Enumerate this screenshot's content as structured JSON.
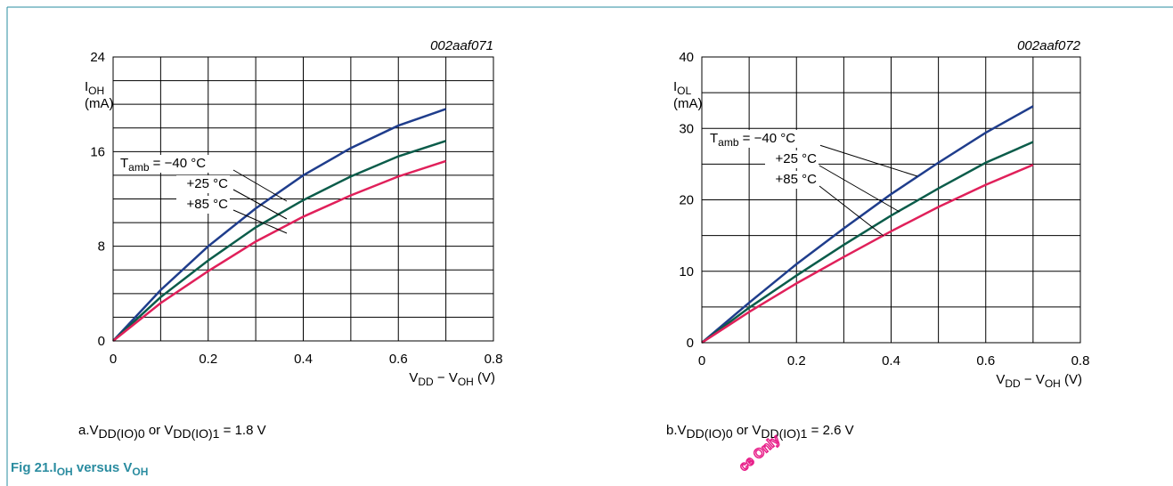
{
  "chart_data": [
    {
      "type": "line",
      "code": "002aaf071",
      "ylabel": [
        {
          "t": "I"
        },
        {
          "t": "OH",
          "sub": true
        }
      ],
      "yunit": "(mA)",
      "xlabel": [
        {
          "t": "V"
        },
        {
          "t": "DD",
          "sub": true
        },
        {
          "t": " − V"
        },
        {
          "t": "OH",
          "sub": true
        },
        {
          "t": " (V)"
        }
      ],
      "x": [
        0,
        0.1,
        0.2,
        0.3,
        0.4,
        0.5,
        0.6,
        0.7
      ],
      "xlim": [
        0,
        0.8
      ],
      "xticks": [
        0,
        0.2,
        0.4,
        0.6,
        0.8
      ],
      "xgrid": [
        0,
        0.1,
        0.2,
        0.3,
        0.4,
        0.5,
        0.6,
        0.7,
        0.8
      ],
      "ylim": [
        0,
        24
      ],
      "yticks": [
        0,
        8,
        16,
        24
      ],
      "ygrid": [
        0,
        2,
        4,
        6,
        8,
        10,
        12,
        14,
        16,
        18,
        20,
        22,
        24
      ],
      "legend_prefix": [
        {
          "t": "T"
        },
        {
          "t": "amb",
          "sub": true
        },
        {
          "t": " = "
        }
      ],
      "series": [
        {
          "name": "−40 °C",
          "color": "#1f3d8c",
          "values": [
            0,
            4.3,
            8,
            11.2,
            14,
            16.3,
            18.2,
            19.6
          ]
        },
        {
          "name": "+25 °C",
          "color": "#0b5c4a",
          "values": [
            0,
            3.7,
            6.8,
            9.6,
            11.9,
            13.9,
            15.6,
            16.9
          ]
        },
        {
          "name": "+85 °C",
          "color": "#e0205a",
          "values": [
            0,
            3.2,
            5.9,
            8.4,
            10.5,
            12.3,
            13.9,
            15.2
          ]
        }
      ],
      "caption": {
        "label": "a.",
        "text": [
          {
            "t": "V"
          },
          {
            "t": "DD(IO)0",
            "sub": true
          },
          {
            "t": " or V"
          },
          {
            "t": "DD(IO)1",
            "sub": true
          },
          {
            "t": " = 1.8 V"
          }
        ]
      }
    },
    {
      "type": "line",
      "code": "002aaf072",
      "ylabel": [
        {
          "t": "I"
        },
        {
          "t": "OL",
          "sub": true
        }
      ],
      "yunit": "(mA)",
      "xlabel": [
        {
          "t": "V"
        },
        {
          "t": "DD",
          "sub": true
        },
        {
          "t": " − V"
        },
        {
          "t": "OH",
          "sub": true
        },
        {
          "t": " (V)"
        }
      ],
      "x": [
        0,
        0.1,
        0.2,
        0.3,
        0.4,
        0.5,
        0.6,
        0.7
      ],
      "xlim": [
        0,
        0.8
      ],
      "xticks": [
        0,
        0.2,
        0.4,
        0.6,
        0.8
      ],
      "xgrid": [
        0,
        0.1,
        0.2,
        0.3,
        0.4,
        0.5,
        0.6,
        0.7,
        0.8
      ],
      "ylim": [
        0,
        40
      ],
      "yticks": [
        0,
        10,
        20,
        30,
        40
      ],
      "ygrid": [
        0,
        5,
        10,
        15,
        20,
        25,
        30,
        35,
        40
      ],
      "legend_prefix": [
        {
          "t": "T"
        },
        {
          "t": "amb",
          "sub": true
        },
        {
          "t": " = "
        }
      ],
      "series": [
        {
          "name": "−40 °C",
          "color": "#1f3d8c",
          "values": [
            0,
            5.6,
            11,
            16,
            20.8,
            25.2,
            29.4,
            33.1
          ]
        },
        {
          "name": "+25 °C",
          "color": "#0b5c4a",
          "values": [
            0,
            4.9,
            9.4,
            13.7,
            17.8,
            21.6,
            25.2,
            28.1
          ]
        },
        {
          "name": "+85 °C",
          "color": "#e0205a",
          "values": [
            0,
            4.3,
            8.3,
            12,
            15.6,
            19,
            22.1,
            24.9
          ]
        }
      ],
      "caption": {
        "label": "b.",
        "text": [
          {
            "t": "V"
          },
          {
            "t": "DD(IO)0",
            "sub": true
          },
          {
            "t": " or V"
          },
          {
            "t": "DD(IO)1",
            "sub": true
          },
          {
            "t": " = 2.6 V"
          }
        ]
      }
    }
  ],
  "figure": {
    "number": "Fig 21.",
    "title": [
      {
        "t": "I"
      },
      {
        "t": "OH",
        "sub": true
      },
      {
        "t": " versus V"
      },
      {
        "t": "OH",
        "sub": true
      }
    ]
  },
  "watermark": "ce Only"
}
